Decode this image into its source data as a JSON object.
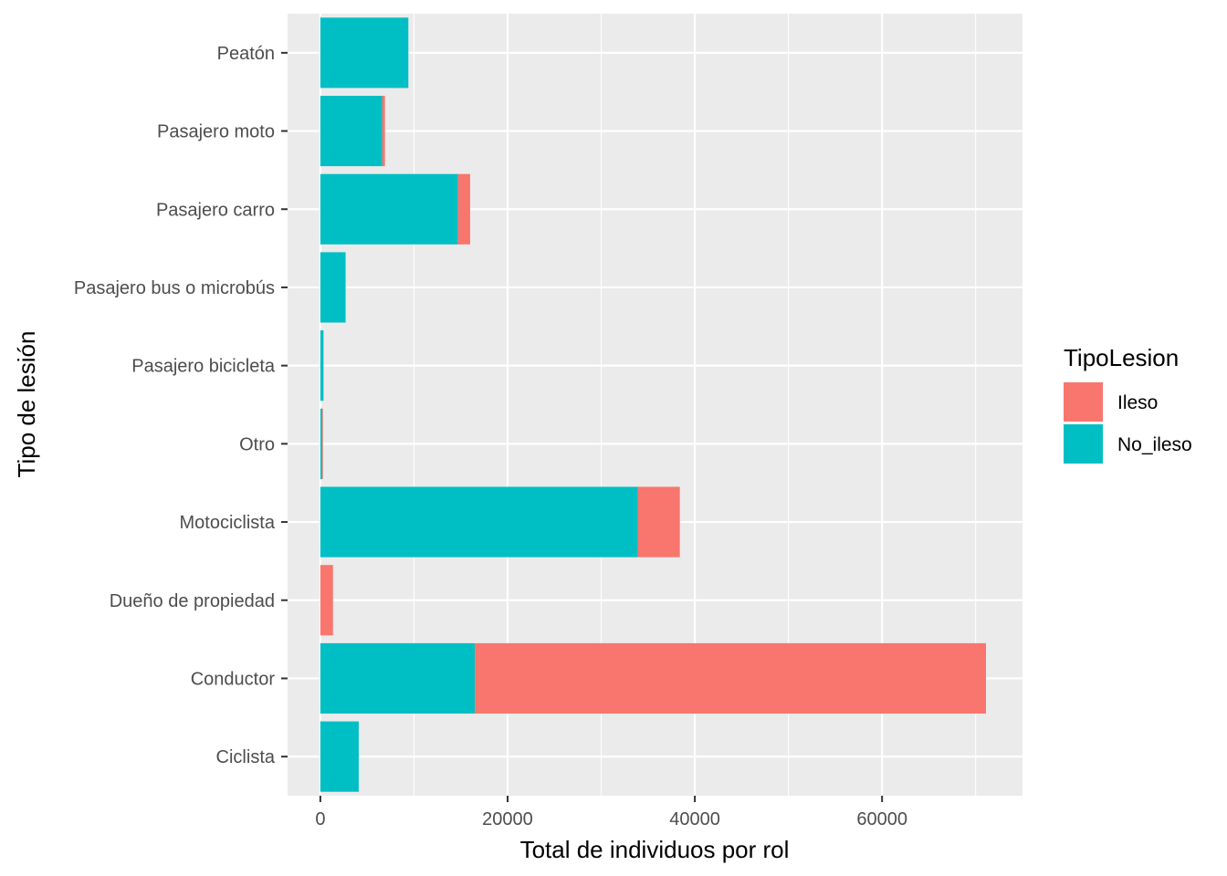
{
  "chart_data": {
    "type": "bar",
    "orientation": "horizontal",
    "stacked": true,
    "categories": [
      "Ciclista",
      "Conductor",
      "Dueño de propiedad",
      "Motociclista",
      "Otro",
      "Pasajero bicicleta",
      "Pasajero bus o microbús",
      "Pasajero carro",
      "Pasajero moto",
      "Peatón"
    ],
    "series": [
      {
        "name": "Ileso",
        "color": "#F8766D",
        "values": [
          0,
          54600,
          1350,
          4500,
          80,
          30,
          0,
          1300,
          300,
          0
        ]
      },
      {
        "name": "No_ileso",
        "color": "#00BFC4",
        "values": [
          4100,
          16500,
          0,
          33900,
          200,
          300,
          2700,
          14700,
          6600,
          9400
        ]
      }
    ],
    "xlabel": "Total de individuos por rol",
    "ylabel": "Tipo de lesión",
    "xlim": [
      -3500,
      75000
    ],
    "xticks": [
      0,
      20000,
      40000,
      60000
    ],
    "xtick_labels": [
      "0",
      "20000",
      "40000",
      "60000"
    ],
    "grid": true,
    "legend": {
      "title": "TipoLesion",
      "position": "right",
      "entries": [
        "Ileso",
        "No_ileso"
      ]
    },
    "colors": {
      "panel_background": "#EBEBEB",
      "grid": "#FFFFFF",
      "tick": "#333333",
      "tick_text": "#4D4D4D"
    }
  }
}
